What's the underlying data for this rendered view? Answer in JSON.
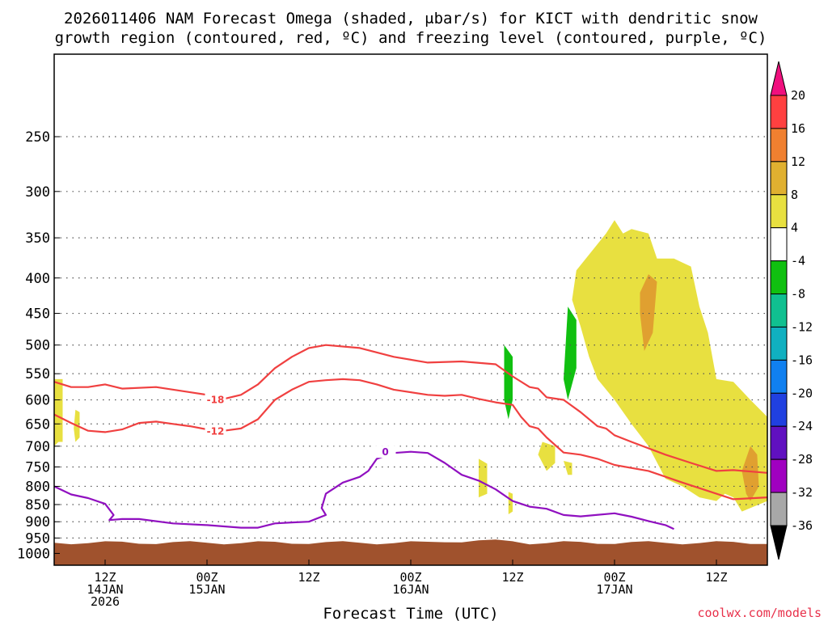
{
  "title": {
    "line1": "2026011406 NAM Forecast Omega (shaded, μbar/s) for KICT with dendritic snow",
    "line2": "growth region (contoured, red, ºC) and freezing level (contoured, purple, ºC)"
  },
  "watermark": "coolwx.com/models",
  "chart_data": {
    "type": "heatmap",
    "xlabel": "Forecast Time (UTC)",
    "ylabel": "",
    "x_units": "hours since 2026-01-14 06Z",
    "xlim": [
      0,
      84
    ],
    "ylim": [
      1040,
      190
    ],
    "grid": true,
    "y_ticks": [
      {
        "value": 250,
        "label": "250"
      },
      {
        "value": 300,
        "label": "300"
      },
      {
        "value": 350,
        "label": "350"
      },
      {
        "value": 400,
        "label": "400"
      },
      {
        "value": 450,
        "label": "450"
      },
      {
        "value": 500,
        "label": "500"
      },
      {
        "value": 550,
        "label": "550"
      },
      {
        "value": 600,
        "label": "600"
      },
      {
        "value": 650,
        "label": "650"
      },
      {
        "value": 700,
        "label": "700"
      },
      {
        "value": 750,
        "label": "750"
      },
      {
        "value": 800,
        "label": "800"
      },
      {
        "value": 850,
        "label": "850"
      },
      {
        "value": 900,
        "label": "900"
      },
      {
        "value": 950,
        "label": "950"
      },
      {
        "value": 1000,
        "label": "1000"
      }
    ],
    "x_ticks": [
      {
        "hour": 6,
        "lines": [
          "12Z",
          "14JAN",
          "2026"
        ]
      },
      {
        "hour": 18,
        "lines": [
          "00Z",
          "15JAN"
        ]
      },
      {
        "hour": 30,
        "lines": [
          "12Z"
        ]
      },
      {
        "hour": 42,
        "lines": [
          "00Z",
          "16JAN"
        ]
      },
      {
        "hour": 54,
        "lines": [
          "12Z"
        ]
      },
      {
        "hour": 66,
        "lines": [
          "00Z",
          "17JAN"
        ]
      },
      {
        "hour": 78,
        "lines": [
          "12Z"
        ]
      }
    ],
    "colorbar": {
      "labels": [
        "20",
        "16",
        "12",
        "8",
        "4",
        "-4",
        "-8",
        "-12",
        "-16",
        "-20",
        "-24",
        "-28",
        "-32",
        "-36"
      ],
      "colors": [
        "#ff2a5a",
        "#ff4040",
        "#f08030",
        "#e0b030",
        "#e8e040",
        "#ffffff",
        "#10c010",
        "#10c090",
        "#10b0c0",
        "#1080f0",
        "#2040e0",
        "#6010c0",
        "#a000c0",
        "#a8a8a8"
      ],
      "top_arrow_color": "#f0107e",
      "bottom_arrow_color": "#000000"
    },
    "colors": {
      "dgz": "#f04040",
      "freezing": "#9010c0",
      "ground": "#a0522d"
    },
    "contours": [
      {
        "name": "-18 °C (dendritic growth region top)",
        "label": "-18",
        "color": "#f04040",
        "points": [
          [
            0,
            565
          ],
          [
            2,
            575
          ],
          [
            4,
            575
          ],
          [
            6,
            570
          ],
          [
            8,
            578
          ],
          [
            12,
            575
          ],
          [
            16,
            585
          ],
          [
            18,
            590
          ],
          [
            20,
            598
          ],
          [
            22,
            590
          ],
          [
            24,
            570
          ],
          [
            26,
            540
          ],
          [
            28,
            520
          ],
          [
            30,
            505
          ],
          [
            32,
            500
          ],
          [
            36,
            505
          ],
          [
            40,
            520
          ],
          [
            44,
            530
          ],
          [
            48,
            528
          ],
          [
            52,
            533
          ],
          [
            54,
            555
          ],
          [
            56,
            575
          ],
          [
            57,
            578
          ],
          [
            58,
            595
          ],
          [
            60,
            600
          ],
          [
            62,
            625
          ],
          [
            64,
            655
          ],
          [
            65,
            660
          ],
          [
            66,
            675
          ],
          [
            68,
            690
          ],
          [
            72,
            720
          ],
          [
            75,
            740
          ],
          [
            78,
            760
          ],
          [
            80,
            758
          ],
          [
            84,
            765
          ]
        ],
        "label_at": [
          19,
          600
        ]
      },
      {
        "name": "-12 °C (dendritic growth region bottom)",
        "label": "-12",
        "color": "#f04040",
        "points": [
          [
            0,
            630
          ],
          [
            2,
            648
          ],
          [
            4,
            665
          ],
          [
            6,
            668
          ],
          [
            8,
            662
          ],
          [
            10,
            648
          ],
          [
            12,
            645
          ],
          [
            14,
            650
          ],
          [
            16,
            655
          ],
          [
            18,
            662
          ],
          [
            20,
            665
          ],
          [
            22,
            660
          ],
          [
            24,
            640
          ],
          [
            26,
            600
          ],
          [
            28,
            580
          ],
          [
            30,
            565
          ],
          [
            32,
            562
          ],
          [
            34,
            560
          ],
          [
            36,
            562
          ],
          [
            38,
            570
          ],
          [
            40,
            580
          ],
          [
            44,
            590
          ],
          [
            46,
            592
          ],
          [
            48,
            590
          ],
          [
            50,
            598
          ],
          [
            52,
            605
          ],
          [
            54,
            610
          ],
          [
            55,
            635
          ],
          [
            56,
            655
          ],
          [
            57,
            660
          ],
          [
            58,
            680
          ],
          [
            60,
            715
          ],
          [
            62,
            720
          ],
          [
            64,
            730
          ],
          [
            66,
            745
          ],
          [
            70,
            760
          ],
          [
            74,
            790
          ],
          [
            78,
            820
          ],
          [
            80,
            835
          ],
          [
            84,
            830
          ]
        ],
        "label_at": [
          19,
          666
        ]
      },
      {
        "name": "0 °C (freezing level)",
        "label": "0",
        "color": "#9010c0",
        "points": [
          [
            0,
            800
          ],
          [
            2,
            822
          ],
          [
            4,
            832
          ],
          [
            6,
            848
          ],
          [
            7,
            880
          ],
          [
            6.5,
            895
          ],
          [
            8,
            892
          ],
          [
            10,
            892
          ],
          [
            14,
            905
          ],
          [
            18,
            910
          ],
          [
            22,
            918
          ],
          [
            24,
            918
          ],
          [
            26,
            905
          ],
          [
            28,
            902
          ],
          [
            30,
            900
          ],
          [
            32,
            880
          ],
          [
            31.5,
            860
          ],
          [
            32,
            820
          ],
          [
            34,
            790
          ],
          [
            36,
            775
          ],
          [
            37,
            760
          ],
          [
            38,
            730
          ],
          [
            40,
            716
          ],
          [
            42,
            713
          ],
          [
            44,
            716
          ],
          [
            46,
            740
          ],
          [
            48,
            770
          ],
          [
            50,
            785
          ],
          [
            52,
            808
          ],
          [
            54,
            840
          ],
          [
            56,
            856
          ],
          [
            58,
            862
          ],
          [
            60,
            880
          ],
          [
            62,
            884
          ],
          [
            66,
            875
          ],
          [
            68,
            885
          ],
          [
            70,
            898
          ],
          [
            72,
            910
          ],
          [
            73,
            922
          ]
        ],
        "label_at": [
          39,
          714
        ]
      }
    ],
    "fills": [
      {
        "omega": 4,
        "color": "#e8e040",
        "points": [
          [
            65,
            345
          ],
          [
            66,
            330
          ],
          [
            67,
            345
          ],
          [
            68,
            340
          ],
          [
            70,
            345
          ],
          [
            71,
            375
          ],
          [
            73,
            375
          ],
          [
            74,
            380
          ],
          [
            75,
            385
          ],
          [
            76,
            440
          ],
          [
            77,
            480
          ],
          [
            78,
            560
          ],
          [
            80,
            565
          ],
          [
            82,
            600
          ],
          [
            84,
            635
          ],
          [
            84,
            840
          ],
          [
            82,
            860
          ],
          [
            81,
            870
          ],
          [
            80,
            830
          ],
          [
            79,
            820
          ],
          [
            78,
            840
          ],
          [
            76,
            830
          ],
          [
            74,
            800
          ],
          [
            72,
            780
          ],
          [
            70,
            700
          ],
          [
            68,
            650
          ],
          [
            66,
            600
          ],
          [
            64,
            560
          ],
          [
            63,
            520
          ],
          [
            62,
            470
          ],
          [
            61,
            430
          ],
          [
            61.5,
            390
          ]
        ]
      },
      {
        "omega": 4,
        "color": "#e8e040",
        "points": [
          [
            0,
            560
          ],
          [
            1,
            560
          ],
          [
            1,
            690
          ],
          [
            0.5,
            690
          ],
          [
            0,
            700
          ]
        ]
      },
      {
        "omega": 4,
        "color": "#e8e040",
        "points": [
          [
            2.5,
            620
          ],
          [
            3,
            625
          ],
          [
            3,
            680
          ],
          [
            2.5,
            690
          ],
          [
            2.3,
            660
          ]
        ]
      },
      {
        "omega": 4,
        "color": "#e8e040",
        "points": [
          [
            57.5,
            690
          ],
          [
            59,
            700
          ],
          [
            59,
            740
          ],
          [
            58,
            760
          ],
          [
            57,
            720
          ]
        ]
      },
      {
        "omega": 4,
        "color": "#e8e040",
        "points": [
          [
            50,
            730
          ],
          [
            51,
            742
          ],
          [
            51,
            820
          ],
          [
            50,
            830
          ]
        ]
      },
      {
        "omega": 4,
        "color": "#e8e040",
        "points": [
          [
            53.5,
            815
          ],
          [
            54,
            820
          ],
          [
            54,
            870
          ],
          [
            53.5,
            878
          ]
        ]
      },
      {
        "omega": 4,
        "color": "#e8e040",
        "points": [
          [
            60,
            735
          ],
          [
            61,
            740
          ],
          [
            61,
            770
          ],
          [
            60.5,
            770
          ]
        ]
      },
      {
        "omega": 12,
        "color": "#e0a030",
        "points": [
          [
            69,
            420
          ],
          [
            70,
            395
          ],
          [
            71,
            405
          ],
          [
            70.5,
            480
          ],
          [
            69.5,
            510
          ],
          [
            69,
            450
          ]
        ]
      },
      {
        "omega": 12,
        "color": "#e0a030",
        "points": [
          [
            82,
            700
          ],
          [
            82.8,
            720
          ],
          [
            83,
            800
          ],
          [
            82,
            840
          ],
          [
            81.5,
            820
          ],
          [
            81,
            760
          ]
        ]
      },
      {
        "omega": -8,
        "color": "#10c010",
        "points": [
          [
            53,
            500
          ],
          [
            54,
            520
          ],
          [
            54,
            600
          ],
          [
            53.5,
            640
          ],
          [
            53,
            600
          ]
        ]
      },
      {
        "omega": -8,
        "color": "#10c010",
        "points": [
          [
            60.5,
            440
          ],
          [
            61.5,
            460
          ],
          [
            61.5,
            540
          ],
          [
            60.5,
            600
          ],
          [
            60,
            560
          ]
        ]
      }
    ]
  }
}
